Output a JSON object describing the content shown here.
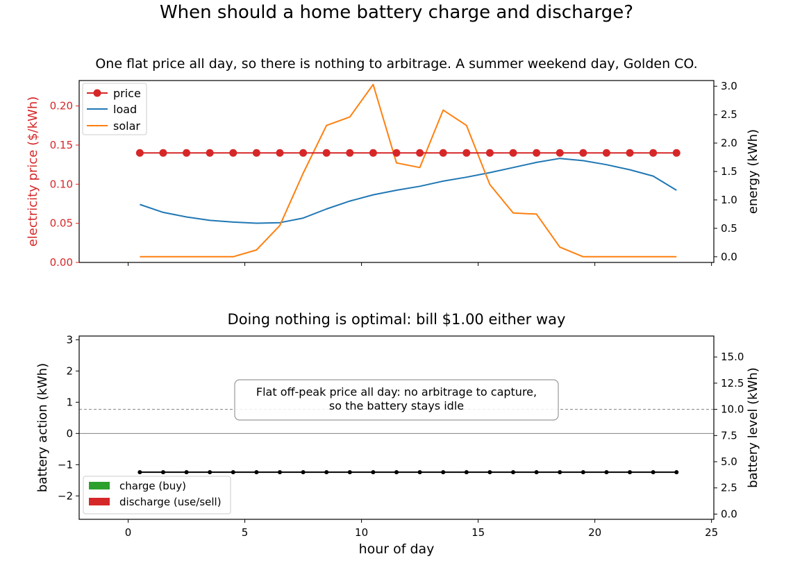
{
  "figure": {
    "title": "When should a home battery charge and discharge?"
  },
  "colors": {
    "price": "#d62728",
    "load": "#1f77b4",
    "solar": "#ff7f0e",
    "charge": "#2ca02c",
    "discharge": "#d62728",
    "battery_level": "#000000",
    "reference": "#808080"
  },
  "chart_data": [
    {
      "type": "line",
      "title": "One flat price all day, so there is nothing to arbitrage. A summer weekend day, Golden CO.",
      "xlabel": "",
      "ylabel_left": "electricity price ($/kWh)",
      "ylabel_right": "energy (kWh)",
      "xlim": [
        -2.1,
        25.1
      ],
      "ylim_left": [
        0,
        0.2325
      ],
      "ylim_right": [
        -0.1,
        3.1
      ],
      "x_ticks": [
        0,
        5,
        10,
        15,
        20,
        25
      ],
      "x_tick_labels": [],
      "y_left_ticks": [
        0.0,
        0.05,
        0.1,
        0.15,
        0.2
      ],
      "y_left_tick_labels": [
        "0.00",
        "0.05",
        "0.10",
        "0.15",
        "0.20"
      ],
      "y_right_ticks": [
        0.0,
        0.5,
        1.0,
        1.5,
        2.0,
        2.5,
        3.0
      ],
      "y_right_tick_labels": [
        "0.0",
        "0.5",
        "1.0",
        "1.5",
        "2.0",
        "2.5",
        "3.0"
      ],
      "legend": "upper left",
      "grid": false,
      "x": [
        0.5,
        1.5,
        2.5,
        3.5,
        4.5,
        5.5,
        6.5,
        7.5,
        8.5,
        9.5,
        10.5,
        11.5,
        12.5,
        13.5,
        14.5,
        15.5,
        16.5,
        17.5,
        18.5,
        19.5,
        20.5,
        21.5,
        22.5,
        23.5
      ],
      "series": [
        {
          "name": "price",
          "axis": "left",
          "marker": "circle",
          "values": [
            0.14,
            0.14,
            0.14,
            0.14,
            0.14,
            0.14,
            0.14,
            0.14,
            0.14,
            0.14,
            0.14,
            0.14,
            0.14,
            0.14,
            0.14,
            0.14,
            0.14,
            0.14,
            0.14,
            0.14,
            0.14,
            0.14,
            0.14,
            0.14
          ]
        },
        {
          "name": "load",
          "axis": "right",
          "values": [
            0.92,
            0.78,
            0.7,
            0.64,
            0.61,
            0.59,
            0.6,
            0.68,
            0.84,
            0.98,
            1.09,
            1.17,
            1.24,
            1.33,
            1.4,
            1.48,
            1.57,
            1.66,
            1.73,
            1.69,
            1.62,
            1.53,
            1.42,
            1.17
          ]
        },
        {
          "name": "solar",
          "axis": "right",
          "values": [
            0.0,
            0.0,
            0.0,
            0.0,
            0.0,
            0.12,
            0.55,
            1.47,
            2.31,
            2.46,
            3.03,
            1.65,
            1.57,
            2.58,
            2.31,
            1.27,
            0.77,
            0.75,
            0.17,
            0.0,
            0.0,
            0.0,
            0.0,
            0.0
          ]
        }
      ]
    },
    {
      "type": "bar",
      "title": "Doing nothing is optimal: bill $1.00 either way",
      "xlabel": "hour of day",
      "ylabel_left": "battery action (kWh)",
      "ylabel_right": "battery level (kWh)",
      "xlim": [
        -2.1,
        25.1
      ],
      "ylim_left": [
        -2.75,
        3.12
      ],
      "ylim_right": [
        -0.5,
        17.0
      ],
      "x_ticks": [
        0,
        5,
        10,
        15,
        20,
        25
      ],
      "x_tick_labels": [
        "0",
        "5",
        "10",
        "15",
        "20",
        "25"
      ],
      "y_left_ticks": [
        -2,
        -1,
        0,
        1,
        2,
        3
      ],
      "y_left_tick_labels": [
        "−2",
        "−1",
        "0",
        "1",
        "2",
        "3"
      ],
      "y_right_ticks": [
        0.0,
        2.5,
        5.0,
        7.5,
        10.0,
        12.5,
        15.0
      ],
      "y_right_tick_labels": [
        "0.0",
        "2.5",
        "5.0",
        "7.5",
        "10.0",
        "12.5",
        "15.0"
      ],
      "legend": "lower left",
      "grid": false,
      "annotation": "Flat off-peak price all day: no arbitrage to capture,\nso the battery stays idle",
      "reference_line_right": 10.0,
      "x": [
        0.5,
        1.5,
        2.5,
        3.5,
        4.5,
        5.5,
        6.5,
        7.5,
        8.5,
        9.5,
        10.5,
        11.5,
        12.5,
        13.5,
        14.5,
        15.5,
        16.5,
        17.5,
        18.5,
        19.5,
        20.5,
        21.5,
        22.5,
        23.5
      ],
      "series": [
        {
          "name": "charge (buy)",
          "kind": "bar",
          "axis": "left",
          "values": [
            0,
            0,
            0,
            0,
            0,
            0,
            0,
            0,
            0,
            0,
            0,
            0,
            0,
            0,
            0,
            0,
            0,
            0,
            0,
            0,
            0,
            0,
            0,
            0
          ]
        },
        {
          "name": "discharge (use/sell)",
          "kind": "bar",
          "axis": "left",
          "values": [
            0,
            0,
            0,
            0,
            0,
            0,
            0,
            0,
            0,
            0,
            0,
            0,
            0,
            0,
            0,
            0,
            0,
            0,
            0,
            0,
            0,
            0,
            0,
            0
          ]
        },
        {
          "kind": "line",
          "axis": "right",
          "marker": "dot",
          "values": [
            4.0,
            4.0,
            4.0,
            4.0,
            4.0,
            4.0,
            4.0,
            4.0,
            4.0,
            4.0,
            4.0,
            4.0,
            4.0,
            4.0,
            4.0,
            4.0,
            4.0,
            4.0,
            4.0,
            4.0,
            4.0,
            4.0,
            4.0,
            4.0
          ]
        }
      ]
    }
  ]
}
